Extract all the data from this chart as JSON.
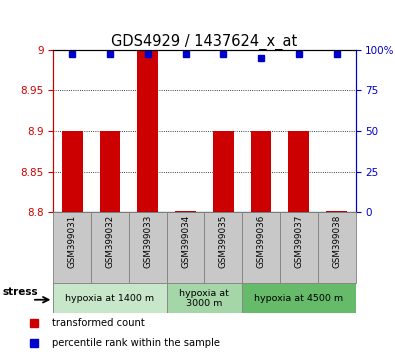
{
  "title": "GDS4929 / 1437624_x_at",
  "samples": [
    "GSM399031",
    "GSM399032",
    "GSM399033",
    "GSM399034",
    "GSM399035",
    "GSM399036",
    "GSM399037",
    "GSM399038"
  ],
  "transformed_counts": [
    8.9,
    8.9,
    9.0,
    8.802,
    8.9,
    8.9,
    8.9,
    8.802
  ],
  "percentile_ranks": [
    97,
    97,
    97,
    97,
    97,
    95,
    97,
    97
  ],
  "bar_base": 8.8,
  "ylim_left": [
    8.8,
    9.0
  ],
  "ylim_right": [
    0,
    100
  ],
  "yticks_left": [
    8.8,
    8.85,
    8.9,
    8.95,
    9.0
  ],
  "yticks_right": [
    0,
    25,
    50,
    75,
    100
  ],
  "ytick_labels_left": [
    "8.8",
    "8.85",
    "8.9",
    "8.95",
    "9"
  ],
  "ytick_labels_right": [
    "0",
    "25",
    "50",
    "75",
    "100%"
  ],
  "bar_color": "#cc0000",
  "dot_color": "#0000cc",
  "groups": [
    {
      "label": "hypoxia at 1400 m",
      "start": 0,
      "end": 3,
      "color": "#c8e6c9"
    },
    {
      "label": "hypoxia at\n3000 m",
      "start": 3,
      "end": 5,
      "color": "#a5d6a7"
    },
    {
      "label": "hypoxia at 4500 m",
      "start": 5,
      "end": 8,
      "color": "#66bb6a"
    }
  ],
  "stress_label": "stress",
  "legend_bar_label": "transformed count",
  "legend_dot_label": "percentile rank within the sample",
  "bar_color_legend": "#cc0000",
  "dot_color_legend": "#0000cc",
  "axis_label_color_left": "#cc0000",
  "axis_label_color_right": "#0000cc",
  "label_area_color": "#c8c8c8",
  "tick_fontsize": 7.5,
  "title_fontsize": 10.5
}
